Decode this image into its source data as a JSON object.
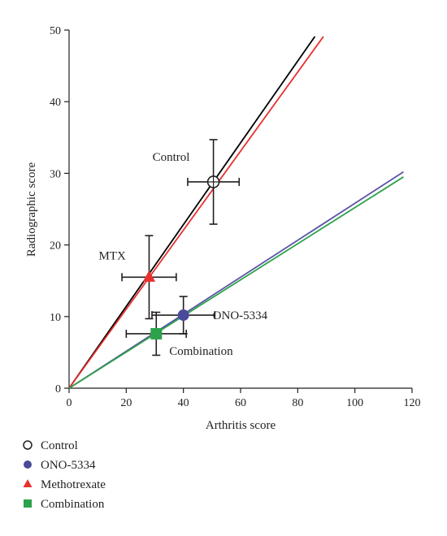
{
  "chart_data": {
    "type": "scatter",
    "title": "",
    "xlabel": "Arthritis score",
    "ylabel": "Radiographic score",
    "xlim": [
      0,
      120
    ],
    "ylim": [
      0,
      50
    ],
    "xticks": [
      0,
      20,
      40,
      60,
      80,
      100,
      120
    ],
    "yticks": [
      0,
      10,
      20,
      30,
      40,
      50
    ],
    "grid": false,
    "legend_placement": "bottom-left",
    "series": [
      {
        "name": "Control",
        "key": "control",
        "marker": "open-circle",
        "color": "#231f20",
        "point": {
          "x": 50.5,
          "y": 28.8,
          "x_err": 9,
          "y_err": 5.9
        },
        "line_end": {
          "x": 86,
          "y": 49.1
        },
        "line_color": "#000000",
        "annotation": "Control"
      },
      {
        "name": "ONO-5334",
        "key": "ono",
        "marker": "circle",
        "color": "#4a4a9a",
        "point": {
          "x": 40,
          "y": 10.2,
          "x_err": 11,
          "y_err": 2.6
        },
        "line_end": {
          "x": 117,
          "y": 30.2
        },
        "line_color": "#5b54a5",
        "annotation": "ONO-5334"
      },
      {
        "name": "Methotrexate",
        "key": "mtx",
        "marker": "triangle",
        "color": "#e8312f",
        "point": {
          "x": 28,
          "y": 15.5,
          "x_err": 9.5,
          "y_err": 5.8
        },
        "line_end": {
          "x": 89,
          "y": 49.1
        },
        "line_color": "#e8312f",
        "annotation": "MTX"
      },
      {
        "name": "Combination",
        "key": "combo",
        "marker": "square",
        "color": "#2ca24a",
        "point": {
          "x": 30.5,
          "y": 7.6,
          "x_err": 10.5,
          "y_err": 3
        },
        "line_end": {
          "x": 117,
          "y": 29.5
        },
        "line_color": "#2ca24a",
        "annotation": "Combination"
      }
    ]
  }
}
